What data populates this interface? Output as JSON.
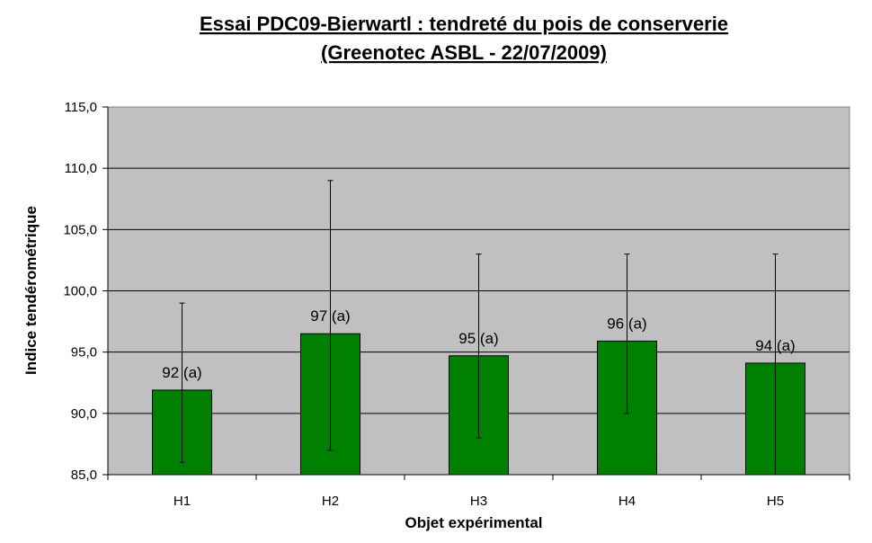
{
  "chart_data": {
    "type": "bar",
    "title_lines": [
      "Essai PDC09-Bierwartl : tendreté du pois de conserverie",
      "(Greenotec ASBL - 22/07/2009)"
    ],
    "xlabel": "Objet expérimental",
    "ylabel": "Indice tendérométrique",
    "categories": [
      "H1",
      "H2",
      "H3",
      "H4",
      "H5"
    ],
    "values": [
      91.9,
      96.5,
      94.7,
      95.9,
      94.1
    ],
    "error_low": [
      86.0,
      87.0,
      88.0,
      90.0,
      85.0
    ],
    "error_high": [
      99.0,
      109.0,
      103.0,
      103.0,
      103.0
    ],
    "data_labels": [
      "92 (a)",
      "97 (a)",
      "95 (a)",
      "96 (a)",
      "94 (a)"
    ],
    "ylim": [
      85.0,
      115.0
    ],
    "yticks": [
      "85,0",
      "90,0",
      "95,0",
      "100,0",
      "105,0",
      "110,0",
      "115,0"
    ],
    "grid": true,
    "colors": {
      "bar": "#008000",
      "plot_background": "#c0c0c0",
      "gridline": "#000000"
    }
  }
}
